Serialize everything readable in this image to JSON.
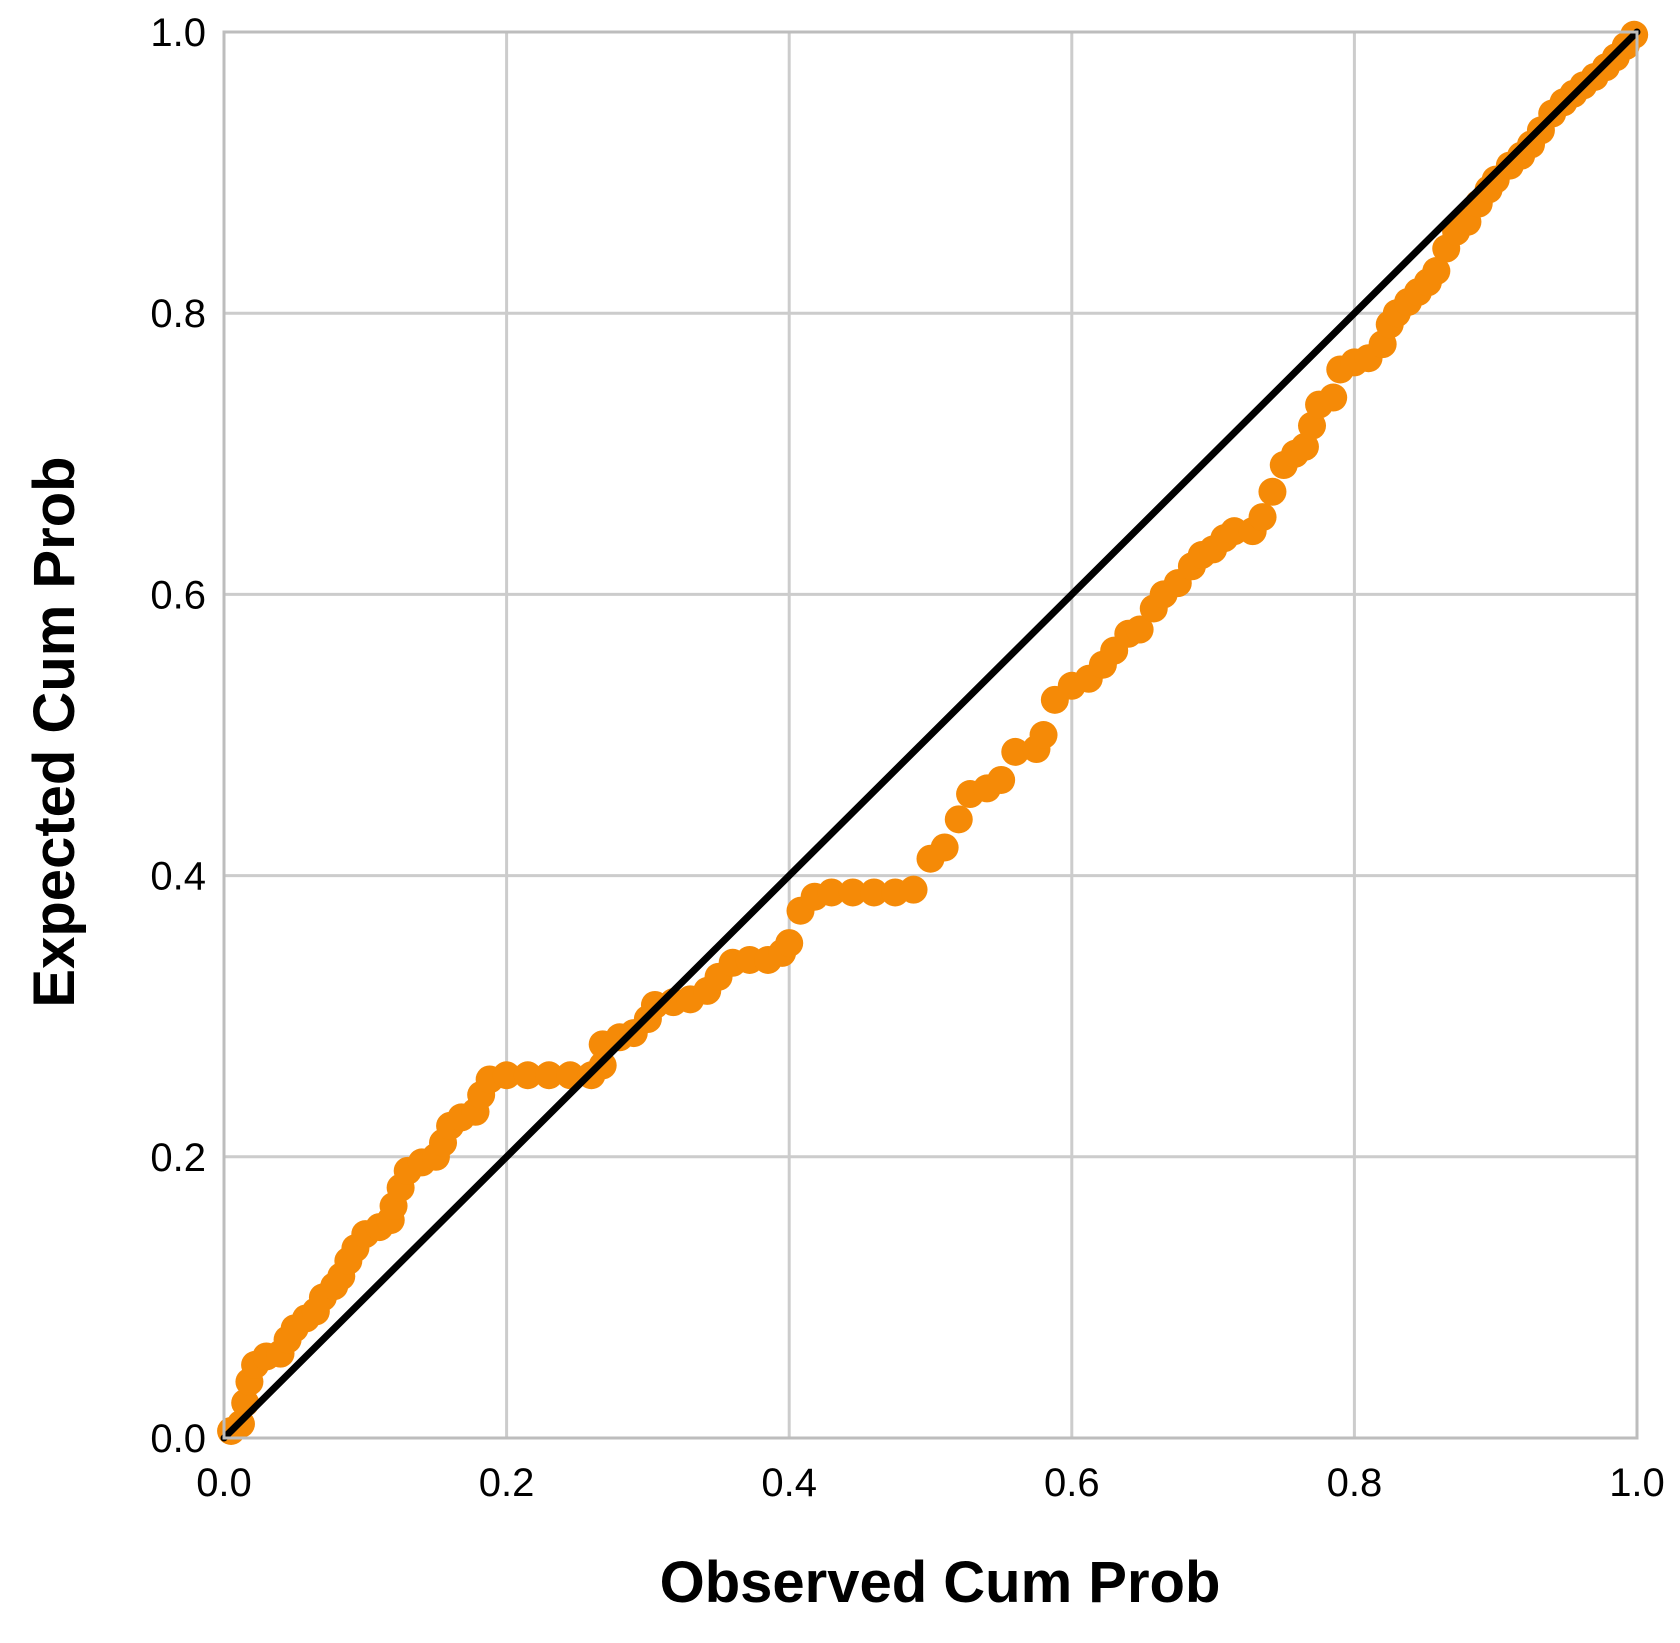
{
  "chart_data": {
    "type": "scatter",
    "title": "",
    "xlabel": "Observed Cum Prob",
    "ylabel": "Expected Cum Prob",
    "xlim": [
      0,
      1
    ],
    "ylim": [
      0,
      1
    ],
    "grid": true,
    "x_ticks": [
      "0.0",
      "0.2",
      "0.4",
      "0.6",
      "0.8",
      "1.0"
    ],
    "y_ticks": [
      "0.0",
      "0.2",
      "0.4",
      "0.6",
      "0.8",
      "1.0"
    ],
    "reference_line": {
      "from": [
        0,
        0
      ],
      "to": [
        1,
        1
      ],
      "color": "#000000"
    },
    "colors": {
      "points": "#F58A07",
      "line": "#000000",
      "grid": "#CCCCCC",
      "frame": "#BDBDBD"
    },
    "series": [
      {
        "points": [
          [
            0.005,
            0.005
          ],
          [
            0.012,
            0.01
          ],
          [
            0.015,
            0.025
          ],
          [
            0.018,
            0.04
          ],
          [
            0.022,
            0.052
          ],
          [
            0.03,
            0.058
          ],
          [
            0.04,
            0.06
          ],
          [
            0.045,
            0.07
          ],
          [
            0.05,
            0.078
          ],
          [
            0.058,
            0.085
          ],
          [
            0.065,
            0.09
          ],
          [
            0.07,
            0.1
          ],
          [
            0.078,
            0.108
          ],
          [
            0.083,
            0.115
          ],
          [
            0.088,
            0.126
          ],
          [
            0.093,
            0.135
          ],
          [
            0.1,
            0.145
          ],
          [
            0.11,
            0.15
          ],
          [
            0.118,
            0.155
          ],
          [
            0.12,
            0.165
          ],
          [
            0.125,
            0.178
          ],
          [
            0.13,
            0.19
          ],
          [
            0.14,
            0.196
          ],
          [
            0.15,
            0.2
          ],
          [
            0.155,
            0.21
          ],
          [
            0.16,
            0.222
          ],
          [
            0.168,
            0.228
          ],
          [
            0.178,
            0.232
          ],
          [
            0.182,
            0.244
          ],
          [
            0.188,
            0.255
          ],
          [
            0.2,
            0.258
          ],
          [
            0.215,
            0.258
          ],
          [
            0.23,
            0.258
          ],
          [
            0.245,
            0.258
          ],
          [
            0.26,
            0.258
          ],
          [
            0.268,
            0.265
          ],
          [
            0.268,
            0.28
          ],
          [
            0.28,
            0.285
          ],
          [
            0.29,
            0.288
          ],
          [
            0.3,
            0.298
          ],
          [
            0.305,
            0.308
          ],
          [
            0.318,
            0.31
          ],
          [
            0.33,
            0.312
          ],
          [
            0.342,
            0.318
          ],
          [
            0.35,
            0.328
          ],
          [
            0.36,
            0.338
          ],
          [
            0.372,
            0.34
          ],
          [
            0.385,
            0.34
          ],
          [
            0.395,
            0.345
          ],
          [
            0.4,
            0.352
          ],
          [
            0.408,
            0.375
          ],
          [
            0.418,
            0.385
          ],
          [
            0.43,
            0.388
          ],
          [
            0.445,
            0.388
          ],
          [
            0.46,
            0.388
          ],
          [
            0.475,
            0.388
          ],
          [
            0.488,
            0.39
          ],
          [
            0.5,
            0.412
          ],
          [
            0.51,
            0.42
          ],
          [
            0.52,
            0.44
          ],
          [
            0.528,
            0.458
          ],
          [
            0.54,
            0.462
          ],
          [
            0.55,
            0.468
          ],
          [
            0.56,
            0.488
          ],
          [
            0.575,
            0.49
          ],
          [
            0.58,
            0.5
          ],
          [
            0.588,
            0.525
          ],
          [
            0.6,
            0.535
          ],
          [
            0.612,
            0.54
          ],
          [
            0.622,
            0.55
          ],
          [
            0.63,
            0.56
          ],
          [
            0.64,
            0.572
          ],
          [
            0.648,
            0.575
          ],
          [
            0.658,
            0.59
          ],
          [
            0.665,
            0.6
          ],
          [
            0.675,
            0.608
          ],
          [
            0.685,
            0.62
          ],
          [
            0.692,
            0.628
          ],
          [
            0.7,
            0.632
          ],
          [
            0.708,
            0.64
          ],
          [
            0.715,
            0.645
          ],
          [
            0.728,
            0.645
          ],
          [
            0.735,
            0.655
          ],
          [
            0.742,
            0.673
          ],
          [
            0.75,
            0.692
          ],
          [
            0.758,
            0.7
          ],
          [
            0.765,
            0.705
          ],
          [
            0.77,
            0.72
          ],
          [
            0.775,
            0.735
          ],
          [
            0.785,
            0.74
          ],
          [
            0.79,
            0.76
          ],
          [
            0.8,
            0.765
          ],
          [
            0.81,
            0.768
          ],
          [
            0.82,
            0.778
          ],
          [
            0.825,
            0.792
          ],
          [
            0.83,
            0.8
          ],
          [
            0.838,
            0.808
          ],
          [
            0.845,
            0.815
          ],
          [
            0.852,
            0.822
          ],
          [
            0.858,
            0.83
          ],
          [
            0.865,
            0.846
          ],
          [
            0.872,
            0.858
          ],
          [
            0.88,
            0.865
          ],
          [
            0.888,
            0.878
          ],
          [
            0.895,
            0.888
          ],
          [
            0.9,
            0.895
          ],
          [
            0.91,
            0.905
          ],
          [
            0.918,
            0.912
          ],
          [
            0.925,
            0.92
          ],
          [
            0.932,
            0.93
          ],
          [
            0.94,
            0.942
          ],
          [
            0.948,
            0.95
          ],
          [
            0.955,
            0.956
          ],
          [
            0.962,
            0.962
          ],
          [
            0.97,
            0.968
          ],
          [
            0.978,
            0.975
          ],
          [
            0.985,
            0.982
          ],
          [
            0.992,
            0.99
          ],
          [
            0.998,
            0.998
          ]
        ]
      }
    ]
  }
}
